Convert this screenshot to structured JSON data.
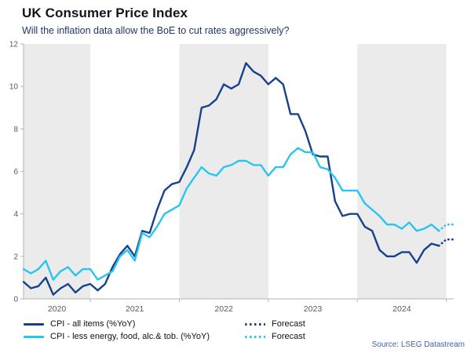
{
  "header": {
    "title": "UK Consumer Price Index",
    "subtitle": "Will the inflation data allow the BoE to cut rates aggressively?"
  },
  "legend": {
    "all_items": "CPI - all items (%YoY)",
    "core": "CPI - less energy, food, alc.& tob. (%YoY)",
    "forecast_all": "Forecast",
    "forecast_core": "Forecast"
  },
  "source": "Source: LSEG Datastream",
  "colors": {
    "all_items": "#17418c",
    "core": "#29c5ef",
    "band": "#ebebeb",
    "axis": "#b3b3b3",
    "tick_text": "#595959",
    "subtitle": "#1f3864",
    "source_text": "#3c64b4"
  },
  "chart_data": {
    "type": "line",
    "title": "UK Consumer Price Index",
    "x_start_month": "2020-04",
    "x_end_month": "2025-02",
    "x_tick_labels": [
      "2020",
      "2021",
      "2022",
      "2023",
      "2024"
    ],
    "ylim": [
      0,
      12
    ],
    "yticks": [
      0,
      2,
      4,
      6,
      8,
      10,
      12
    ],
    "grid": "none",
    "background_bands": "alternating years shaded light gray (2020, 2022, 2024)",
    "legend_position": "bottom",
    "series": [
      {
        "name": "CPI - all items (%YoY)",
        "color_key": "all_items",
        "style": "solid",
        "values": [
          0.8,
          0.5,
          0.6,
          1.0,
          0.2,
          0.5,
          0.7,
          0.3,
          0.6,
          0.7,
          0.4,
          0.7,
          1.5,
          2.1,
          2.5,
          2.0,
          3.2,
          3.1,
          4.2,
          5.1,
          5.4,
          5.5,
          6.2,
          7.0,
          9.0,
          9.1,
          9.4,
          10.1,
          9.9,
          10.1,
          11.1,
          10.7,
          10.5,
          10.1,
          10.4,
          10.1,
          8.7,
          8.7,
          7.9,
          6.8,
          6.7,
          6.7,
          4.6,
          3.9,
          4.0,
          4.0,
          3.4,
          3.2,
          2.3,
          2.0,
          2.0,
          2.2,
          2.2,
          1.7,
          2.3,
          2.6,
          2.5
        ],
        "forecast": [
          2.8,
          2.8
        ]
      },
      {
        "name": "CPI - less energy, food, alc.& tob. (%YoY)",
        "color_key": "core",
        "style": "solid",
        "values": [
          1.4,
          1.2,
          1.4,
          1.8,
          0.9,
          1.3,
          1.5,
          1.1,
          1.4,
          1.4,
          0.9,
          1.1,
          1.3,
          2.0,
          2.3,
          1.8,
          3.1,
          2.9,
          3.4,
          4.0,
          4.2,
          4.4,
          5.2,
          5.7,
          6.2,
          5.9,
          5.8,
          6.2,
          6.3,
          6.5,
          6.5,
          6.3,
          6.3,
          5.8,
          6.2,
          6.2,
          6.8,
          7.1,
          6.9,
          6.9,
          6.2,
          6.1,
          5.7,
          5.1,
          5.1,
          5.1,
          4.5,
          4.2,
          3.9,
          3.5,
          3.5,
          3.3,
          3.6,
          3.2,
          3.3,
          3.5,
          3.2
        ],
        "forecast": [
          3.5,
          3.5
        ]
      }
    ]
  }
}
